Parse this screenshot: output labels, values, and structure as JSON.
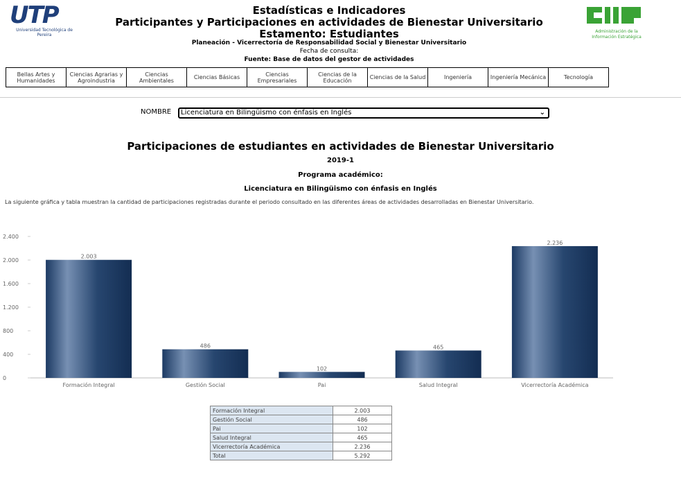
{
  "header": {
    "logo_left": "UTP",
    "logo_left_caption": "Universidad Tecnológica de Pereira",
    "logo_right_caption": "Administración de la Información Estratégica",
    "title": "Estadísticas e Indicadores",
    "subtitle": "Participantes y Participaciones en actividades de Bienestar Universitario",
    "estamento": "Estamento: Estudiantes",
    "office": "Planeación - Vicerrectoría de Responsabilidad Social y Bienestar Universitario",
    "date_label": "Fecha de consulta:",
    "source": "Fuente: Base de datos del gestor de actividades"
  },
  "tabs": [
    "Bellas Artes y Humanidades",
    "Ciencias Agrarias y Agroindustria",
    "Ciencias Ambientales",
    "Ciencias Básicas",
    "Ciencias Empresariales",
    "Ciencias de la Educación",
    "Ciencias de la Salud",
    "Ingeniería",
    "Ingeniería Mecánica",
    "Tecnología"
  ],
  "filter": {
    "label": "NOMBRE",
    "selected": "Licenciatura en Bilingüismo con énfasis en Inglés"
  },
  "report": {
    "title": "Participaciones de estudiantes en actividades de Bienestar Universitario",
    "period": "2019-1",
    "program_label": "Programa académico:",
    "program": "Licenciatura en Bilingüismo con énfasis en Inglés",
    "description": "La siguiente gráfica y tabla muestran la cantidad de participaciones registradas durante el periodo consultado en las diferentes áreas de actividades desarrolladas en Bienestar Universitario."
  },
  "chart_data": {
    "type": "bar",
    "categories": [
      "Formación Integral",
      "Gestión Social",
      "Pai",
      "Salud Integral",
      "Vicerrectoría Académica"
    ],
    "values": [
      2003,
      486,
      102,
      465,
      2236
    ],
    "value_labels": [
      "2.003",
      "486",
      "102",
      "465",
      "2.236"
    ],
    "color": "#1f3f6b",
    "ylim": [
      0,
      2400
    ],
    "yticks": [
      0,
      400,
      800,
      {
        "value": 1200,
        "label": "1.200"
      },
      {
        "value": 1600,
        "label": "1.600"
      },
      {
        "value": 2000,
        "label": "2.000"
      },
      {
        "value": 2400,
        "label": "2.400"
      }
    ],
    "grid": false
  },
  "table": {
    "rows": [
      [
        "Formación Integral",
        "2.003"
      ],
      [
        "Gestión Social",
        "486"
      ],
      [
        "Pai",
        "102"
      ],
      [
        "Salud Integral",
        "465"
      ],
      [
        "Vicerrectoría Académica",
        "2.236"
      ],
      [
        "Total",
        "5.292"
      ]
    ]
  }
}
